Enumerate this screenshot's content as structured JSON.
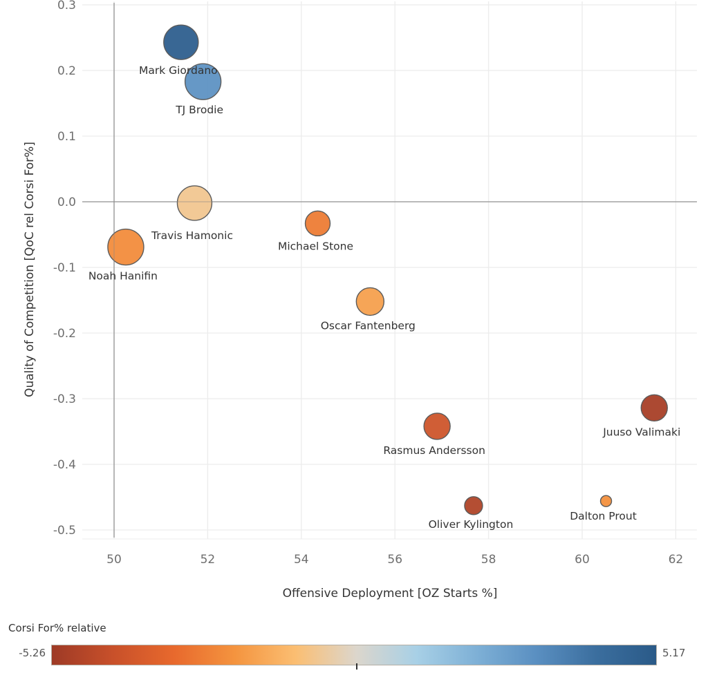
{
  "chart_data": {
    "type": "scatter",
    "subtype": "bubble",
    "title": "",
    "xlabel": "Offensive Deployment [OZ Starts %]",
    "ylabel": "Quality of Competition [QoC rel Corsi For%]",
    "xlim": [
      49.3,
      63.1
    ],
    "ylim": [
      -0.515,
      0.31
    ],
    "x_ticks": [
      50,
      52,
      54,
      56,
      58,
      60,
      62
    ],
    "x_tick_labels": [
      "50",
      "52",
      "54",
      "56",
      "58",
      "60",
      "62"
    ],
    "y_ticks": [
      0.3,
      0.2,
      0.1,
      0.0,
      -0.1,
      -0.2,
      -0.3,
      -0.4,
      -0.5
    ],
    "y_tick_labels": [
      "0.3",
      "0.2",
      "0.1",
      "0.0",
      "-0.1",
      "-0.2",
      "-0.3",
      "-0.4",
      "-0.5"
    ],
    "reference_lines": {
      "x": 50,
      "y": 0
    },
    "grid": true,
    "points": [
      {
        "name": "Mark Giordano",
        "x": 51.43,
        "y": 0.243,
        "size": 625,
        "color_value": 4.9
      },
      {
        "name": "TJ Brodie",
        "x": 51.9,
        "y": 0.183,
        "size": 676,
        "color_value": 3.0
      },
      {
        "name": "Travis Hamonic",
        "x": 51.72,
        "y": -0.002,
        "size": 625,
        "color_value": -0.7
      },
      {
        "name": "Noah Hanifin",
        "x": 50.25,
        "y": -0.069,
        "size": 676,
        "color_value": -2.3
      },
      {
        "name": "Michael Stone",
        "x": 54.35,
        "y": -0.033,
        "size": 324,
        "color_value": -2.7
      },
      {
        "name": "Oscar Fantenberg",
        "x": 55.47,
        "y": -0.152,
        "size": 400,
        "color_value": -1.8
      },
      {
        "name": "Rasmus Andersson",
        "x": 56.9,
        "y": -0.342,
        "size": 361,
        "color_value": -4.0
      },
      {
        "name": "Juuso Valimaki",
        "x": 61.54,
        "y": -0.314,
        "size": 361,
        "color_value": -5.0
      },
      {
        "name": "Oliver Kylington",
        "x": 57.68,
        "y": -0.463,
        "size": 169,
        "color_value": -4.8
      },
      {
        "name": "Dalton Prout",
        "x": 60.51,
        "y": -0.456,
        "size": 64,
        "color_value": -2.2
      }
    ],
    "color_legend": {
      "title": "Corsi For% relative",
      "min": -5.26,
      "max": 5.17,
      "min_label": "-5.26",
      "max_label": "5.17",
      "center_value": 0,
      "palette": "orange-blue diverging",
      "stops": [
        "#9e3a26",
        "#c8502a",
        "#e8692d",
        "#f4943f",
        "#fbbe72",
        "#dcd6cc",
        "#a8d0e6",
        "#7eb0d6",
        "#5a8fc1",
        "#3b6e9e",
        "#2a5a88"
      ]
    }
  }
}
